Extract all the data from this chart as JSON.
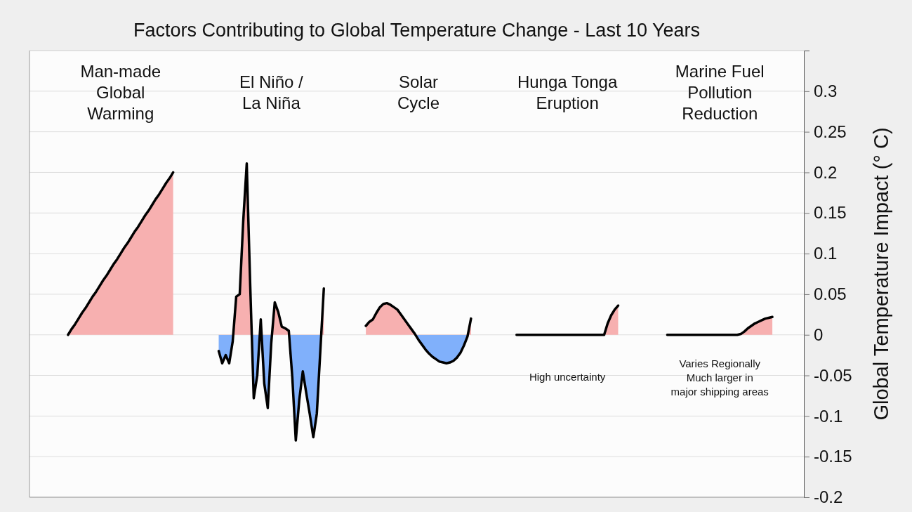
{
  "chart_data": {
    "type": "area",
    "title": "Factors Contributing to Global Temperature Change - Last 10 Years",
    "ylabel": "Global Temperature Impact (° C)",
    "categories": [
      null,
      null,
      null,
      null,
      null,
      null,
      null,
      null,
      null,
      null,
      null,
      null,
      null,
      null,
      null,
      null,
      null,
      null,
      null,
      null,
      null,
      null,
      null,
      null,
      null,
      null,
      null,
      null,
      null,
      null,
      null,
      null,
      null,
      null,
      null,
      null,
      null,
      null,
      null,
      null,
      null,
      null,
      null,
      null,
      null,
      null,
      null,
      null,
      null,
      null,
      null,
      null,
      null,
      null,
      null,
      null,
      null,
      null,
      null,
      null,
      null,
      null,
      null,
      null,
      null,
      null,
      null,
      null,
      null,
      null,
      null,
      null,
      null,
      null,
      null,
      null,
      null,
      null,
      null,
      null,
      null,
      null,
      null,
      null,
      null,
      null,
      null,
      null,
      null,
      null,
      null,
      null,
      null,
      null,
      null,
      null,
      null,
      null,
      null,
      null,
      null,
      null,
      null,
      null,
      null,
      null,
      null,
      null,
      null,
      null,
      null,
      null,
      null,
      null,
      null,
      null,
      null,
      null,
      null,
      null,
      null,
      null,
      null,
      null,
      null,
      null,
      null,
      null,
      null,
      null,
      null,
      null,
      null,
      null,
      null,
      null,
      null,
      null,
      null,
      null,
      null,
      null,
      null,
      null,
      null,
      null,
      null,
      null,
      null,
      null,
      null,
      null,
      null,
      null,
      null,
      null,
      null,
      null,
      null,
      null,
      null,
      null,
      null,
      null,
      null,
      null,
      null,
      null,
      null,
      null,
      null,
      null,
      null,
      null,
      null,
      null,
      null,
      null,
      null,
      null,
      null,
      null,
      null,
      null,
      null,
      null,
      null,
      null,
      null,
      null,
      null,
      null,
      null,
      null,
      null,
      null,
      null,
      null,
      null,
      null,
      null,
      null,
      null,
      null,
      null,
      null,
      null,
      null,
      null,
      null,
      null,
      null,
      null,
      null,
      null,
      null,
      null,
      null,
      null,
      null,
      null,
      null
    ],
    "series": [
      {
        "color": "#000000",
        "values": [
          null,
          null,
          null,
          null,
          null,
          null,
          null,
          null,
          null,
          null,
          null,
          0,
          0.007,
          0.013,
          0.02,
          0.027,
          0.033,
          0.04,
          0.047,
          0.053,
          0.06,
          0.067,
          0.073,
          0.08,
          0.087,
          0.093,
          0.1,
          0.107,
          0.113,
          0.12,
          0.127,
          0.133,
          0.14,
          0.147,
          0.153,
          0.16,
          0.167,
          0.173,
          0.18,
          0.187,
          0.193,
          0.2,
          null,
          null,
          null,
          null,
          null,
          null,
          null,
          null,
          null,
          null,
          null,
          null,
          null,
          null,
          null,
          null,
          null,
          null,
          null,
          null,
          null,
          null,
          null,
          null,
          null,
          null,
          null,
          null,
          null,
          null,
          null,
          null,
          null,
          null,
          null,
          null,
          null,
          null,
          null,
          null,
          null,
          null,
          null,
          null,
          null,
          null,
          null,
          null,
          null,
          null,
          null,
          null,
          null,
          null,
          null,
          null,
          null,
          null,
          null,
          null,
          null,
          null,
          null,
          null,
          null,
          null,
          null,
          null,
          null,
          null,
          null,
          null,
          null,
          null,
          null,
          null,
          null,
          null,
          null,
          null,
          null,
          null,
          null,
          null,
          null,
          null,
          null,
          null,
          null,
          null,
          null,
          null,
          null,
          null,
          null,
          null,
          null,
          null,
          null,
          null,
          null,
          null,
          null,
          null,
          null,
          null,
          null,
          null,
          null,
          null,
          null,
          null,
          null,
          null,
          null,
          null,
          null,
          null,
          null,
          null,
          null,
          null,
          null,
          null,
          null,
          null,
          null,
          null,
          null,
          null,
          null,
          null,
          null,
          null,
          null,
          null,
          null,
          null,
          null,
          null,
          null,
          null,
          null,
          null,
          null,
          null,
          null,
          null,
          null,
          null,
          null,
          null,
          null,
          null,
          null,
          null,
          null,
          null,
          null,
          null,
          null,
          null,
          null,
          null,
          null,
          null,
          null,
          null,
          null,
          null,
          null,
          null,
          null,
          null,
          null,
          null,
          null,
          null,
          null,
          null
        ]
      },
      {
        "color": "#000000",
        "values": [
          null,
          null,
          null,
          null,
          null,
          null,
          null,
          null,
          null,
          null,
          null,
          null,
          null,
          null,
          null,
          null,
          null,
          null,
          null,
          null,
          null,
          null,
          null,
          null,
          null,
          null,
          null,
          null,
          null,
          null,
          null,
          null,
          null,
          null,
          null,
          null,
          null,
          null,
          null,
          null,
          null,
          null,
          null,
          null,
          null,
          null,
          null,
          null,
          null,
          null,
          null,
          null,
          null,
          null,
          -0.02,
          -0.035,
          -0.025,
          -0.035,
          -0.008,
          0.047,
          0.05,
          0.14,
          0.211,
          0.06,
          -0.078,
          -0.05,
          0.019,
          -0.06,
          -0.09,
          -0.01,
          0.04,
          0.028,
          0.01,
          0.008,
          0.005,
          -0.052,
          -0.13,
          -0.08,
          -0.045,
          -0.072,
          -0.098,
          -0.126,
          -0.097,
          -0.02,
          0.057,
          null,
          null,
          null,
          null,
          null,
          null,
          null,
          null,
          null,
          null,
          null,
          null,
          null,
          null,
          null,
          null,
          null,
          null,
          null,
          null,
          null,
          null,
          null,
          null,
          null,
          null,
          null,
          null,
          null,
          null,
          null,
          null,
          null,
          null,
          null,
          null,
          null,
          null,
          null,
          null,
          null,
          null,
          null,
          null,
          null,
          null,
          null,
          null,
          null,
          null,
          null,
          null,
          null,
          null,
          null,
          null,
          null,
          null,
          null,
          null,
          null,
          null,
          null,
          null,
          null,
          null,
          null,
          null,
          null,
          null,
          null,
          null,
          null,
          null,
          null,
          null,
          null,
          null,
          null,
          null,
          null,
          null,
          null,
          null,
          null,
          null,
          null,
          null,
          null,
          null,
          null,
          null,
          null,
          null,
          null,
          null,
          null,
          null,
          null,
          null,
          null,
          null,
          null,
          null,
          null,
          null,
          null,
          null,
          null,
          null,
          null,
          null,
          null,
          null,
          null,
          null,
          null,
          null,
          null,
          null,
          null,
          null,
          null,
          null,
          null,
          null,
          null,
          null,
          null,
          null,
          null,
          null,
          null,
          null,
          null,
          null,
          null
        ]
      },
      {
        "color": "#000000",
        "values": [
          null,
          null,
          null,
          null,
          null,
          null,
          null,
          null,
          null,
          null,
          null,
          null,
          null,
          null,
          null,
          null,
          null,
          null,
          null,
          null,
          null,
          null,
          null,
          null,
          null,
          null,
          null,
          null,
          null,
          null,
          null,
          null,
          null,
          null,
          null,
          null,
          null,
          null,
          null,
          null,
          null,
          null,
          null,
          null,
          null,
          null,
          null,
          null,
          null,
          null,
          null,
          null,
          null,
          null,
          null,
          null,
          null,
          null,
          null,
          null,
          null,
          null,
          null,
          null,
          null,
          null,
          null,
          null,
          null,
          null,
          null,
          null,
          null,
          null,
          null,
          null,
          null,
          null,
          null,
          null,
          null,
          null,
          null,
          null,
          null,
          null,
          null,
          null,
          null,
          null,
          null,
          null,
          null,
          null,
          null,
          null,
          0.011,
          0.016,
          0.019,
          0.027,
          0.034,
          0.038,
          0.039,
          0.037,
          0.034,
          0.031,
          0.025,
          0.019,
          0.013,
          0.007,
          0.001,
          -0.006,
          -0.012,
          -0.018,
          -0.023,
          -0.027,
          -0.03,
          -0.033,
          -0.034,
          -0.035,
          -0.034,
          -0.032,
          -0.028,
          -0.022,
          -0.013,
          -0.002,
          0.02,
          null,
          null,
          null,
          null,
          null,
          null,
          null,
          null,
          null,
          null,
          null,
          null,
          null,
          null,
          null,
          null,
          null,
          null,
          null,
          null,
          null,
          null,
          null,
          null,
          null,
          null,
          null,
          null,
          null,
          null,
          null,
          null,
          null,
          null,
          null,
          null,
          null,
          null,
          null,
          null,
          null,
          null,
          null,
          null,
          null,
          null,
          null,
          null,
          null,
          null,
          null,
          null,
          null,
          null,
          null,
          null,
          null,
          null,
          null,
          null,
          null,
          null,
          null,
          null,
          null,
          null,
          null,
          null,
          null,
          null,
          null,
          null,
          null,
          null,
          null,
          null,
          null,
          null,
          null,
          null,
          null,
          null,
          null,
          null,
          null,
          null,
          null,
          null,
          null,
          null,
          null,
          null,
          null,
          null,
          null
        ]
      },
      {
        "color": "#000000",
        "values": [
          null,
          null,
          null,
          null,
          null,
          null,
          null,
          null,
          null,
          null,
          null,
          null,
          null,
          null,
          null,
          null,
          null,
          null,
          null,
          null,
          null,
          null,
          null,
          null,
          null,
          null,
          null,
          null,
          null,
          null,
          null,
          null,
          null,
          null,
          null,
          null,
          null,
          null,
          null,
          null,
          null,
          null,
          null,
          null,
          null,
          null,
          null,
          null,
          null,
          null,
          null,
          null,
          null,
          null,
          null,
          null,
          null,
          null,
          null,
          null,
          null,
          null,
          null,
          null,
          null,
          null,
          null,
          null,
          null,
          null,
          null,
          null,
          null,
          null,
          null,
          null,
          null,
          null,
          null,
          null,
          null,
          null,
          null,
          null,
          null,
          null,
          null,
          null,
          null,
          null,
          null,
          null,
          null,
          null,
          null,
          null,
          null,
          null,
          null,
          null,
          null,
          null,
          null,
          null,
          null,
          null,
          null,
          null,
          null,
          null,
          null,
          null,
          null,
          null,
          null,
          null,
          null,
          null,
          null,
          null,
          null,
          null,
          null,
          null,
          null,
          null,
          null,
          null,
          null,
          null,
          null,
          null,
          null,
          null,
          null,
          null,
          null,
          null,
          null,
          0,
          0,
          0,
          0,
          0,
          0,
          0,
          0,
          0,
          0,
          0,
          0,
          0,
          0,
          0,
          0,
          0,
          0,
          0,
          0,
          0,
          0,
          0,
          0,
          0,
          0,
          0.014,
          0.024,
          0.031,
          0.036,
          null,
          null,
          null,
          null,
          null,
          null,
          null,
          null,
          null,
          null,
          null,
          null,
          null,
          null,
          null,
          null,
          null,
          null,
          null,
          null,
          null,
          null,
          null,
          null,
          null,
          null,
          null,
          null,
          null,
          null,
          null,
          null,
          null,
          null,
          null,
          null,
          null,
          null,
          null,
          null,
          null,
          null,
          null,
          null,
          null,
          null,
          null,
          null,
          null,
          null,
          null,
          null,
          null
        ]
      },
      {
        "color": "#000000",
        "values": [
          null,
          null,
          null,
          null,
          null,
          null,
          null,
          null,
          null,
          null,
          null,
          null,
          null,
          null,
          null,
          null,
          null,
          null,
          null,
          null,
          null,
          null,
          null,
          null,
          null,
          null,
          null,
          null,
          null,
          null,
          null,
          null,
          null,
          null,
          null,
          null,
          null,
          null,
          null,
          null,
          null,
          null,
          null,
          null,
          null,
          null,
          null,
          null,
          null,
          null,
          null,
          null,
          null,
          null,
          null,
          null,
          null,
          null,
          null,
          null,
          null,
          null,
          null,
          null,
          null,
          null,
          null,
          null,
          null,
          null,
          null,
          null,
          null,
          null,
          null,
          null,
          null,
          null,
          null,
          null,
          null,
          null,
          null,
          null,
          null,
          null,
          null,
          null,
          null,
          null,
          null,
          null,
          null,
          null,
          null,
          null,
          null,
          null,
          null,
          null,
          null,
          null,
          null,
          null,
          null,
          null,
          null,
          null,
          null,
          null,
          null,
          null,
          null,
          null,
          null,
          null,
          null,
          null,
          null,
          null,
          null,
          null,
          null,
          null,
          null,
          null,
          null,
          null,
          null,
          null,
          null,
          null,
          null,
          null,
          null,
          null,
          null,
          null,
          null,
          null,
          null,
          null,
          null,
          null,
          null,
          null,
          null,
          null,
          null,
          null,
          null,
          null,
          null,
          null,
          null,
          null,
          null,
          null,
          null,
          null,
          null,
          null,
          null,
          null,
          null,
          null,
          null,
          null,
          null,
          null,
          null,
          null,
          null,
          null,
          null,
          null,
          null,
          null,
          null,
          null,
          null,
          null,
          0,
          0,
          0,
          0,
          0,
          0,
          0,
          0,
          0,
          0,
          0,
          0,
          0,
          0,
          0,
          0,
          0,
          0,
          0,
          0,
          0,
          0.001,
          0.004,
          0.008,
          0.011,
          0.014,
          0.016,
          0.018,
          0.02,
          0.021,
          0.022,
          null,
          null,
          null,
          null,
          null,
          null,
          null,
          null,
          null
        ]
      }
    ],
    "annotations": [
      "Man-made\nGlobal\nWarming",
      "El Niño /\nLa Niña",
      "Solar\nCycle",
      "Hunga Tonga\nEruption",
      "Marine Fuel\nPollution\nReduction",
      "High uncertainty",
      "Varies Regionally\nMuch larger in\nmajor shipping areas"
    ],
    "ylim": [
      -0.2,
      0.35
    ],
    "yticks": [
      -0.2,
      -0.15,
      -0.1,
      -0.05,
      0,
      0.05,
      0.1,
      0.15,
      0.2,
      0.25,
      0.3
    ],
    "grid": "y",
    "marker": "none",
    "line_style": "solid"
  }
}
